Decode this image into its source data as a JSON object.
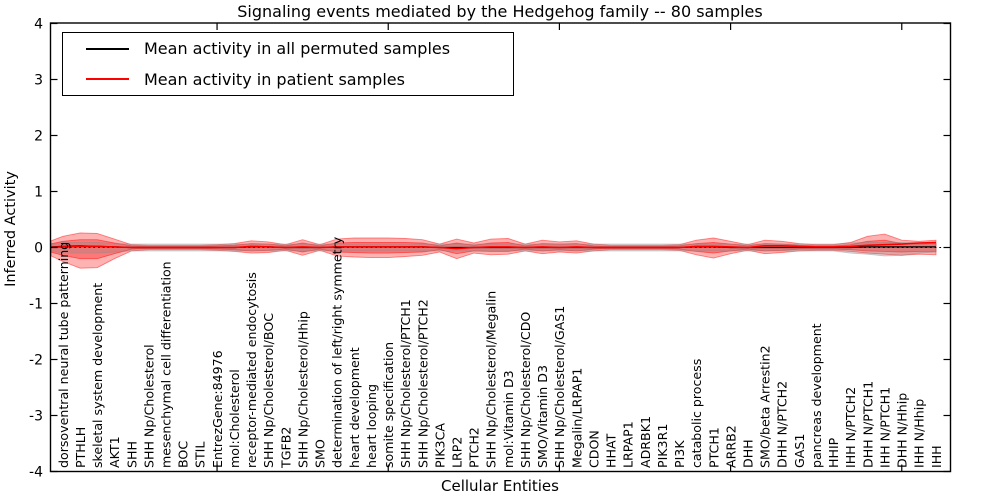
{
  "title": "Signaling events mediated by the Hedgehog family -- 80 samples",
  "axes": {
    "x_label": "Cellular Entities",
    "y_label": "Inferred Activity",
    "y_ticks": [
      4,
      3,
      2,
      1,
      0,
      -1,
      -2,
      -3,
      -4
    ],
    "y_lim": [
      -4,
      4
    ]
  },
  "legend": {
    "position": "upper left",
    "entries": [
      {
        "label": "Mean activity in all permuted samples",
        "color": "#000000"
      },
      {
        "label": "Mean activity in patient samples",
        "color": "#ff0000"
      }
    ]
  },
  "chart_data": {
    "type": "area",
    "title": "Signaling events mediated by the Hedgehog family -- 80 samples",
    "xlabel": "Cellular Entities",
    "ylabel": "Inferred Activity",
    "ylim": [
      -4,
      4
    ],
    "yticks": [
      4,
      3,
      2,
      1,
      0,
      -1,
      -2,
      -3,
      -4
    ],
    "x_major_tick_every": 10,
    "grid": false,
    "legend_position": "upper left",
    "zero_line": {
      "y": 0,
      "style": "dotted",
      "color": "#000000"
    },
    "categories": [
      "dorsoventral neural tube patterning",
      "PTHLH",
      "skeletal system development",
      "AKT1",
      "SHH",
      "SHH Np/Cholesterol",
      "mesenchymal cell differentiation",
      "BOC",
      "STIL",
      "EntrezGene:84976",
      "mol:Cholesterol",
      "receptor-mediated endocytosis",
      "SHH Np/Cholesterol/BOC",
      "TGFB2",
      "SHH Np/Cholesterol/Hhip",
      "SMO",
      "determination of left/right symmetry",
      "heart development",
      "heart looping",
      "somite specification",
      "SHH Np/Cholesterol/PTCH1",
      "SHH Np/Cholesterol/PTCH2",
      "PIK3CA",
      "LRP2",
      "PTCH2",
      "SHH Np/Cholesterol/Megalin",
      "mol:Vitamin D3",
      "SHH Np/Cholesterol/CDO",
      "SMO/Vitamin D3",
      "SHH Np/Cholesterol/GAS1",
      "Megalin/LRPAP1",
      "CDON",
      "HHAT",
      "LRPAP1",
      "ADRBK1",
      "PIK3R1",
      "PI3K",
      "catabolic process",
      "PTCH1",
      "ARRB2",
      "DHH",
      "SMO/beta Arrestin2",
      "DHH N/PTCH2",
      "GAS1",
      "pancreas development",
      "HHIP",
      "IHH N/PTCH2",
      "DHH N/PTCH1",
      "IHH N/PTCH1",
      "DHH N/Hhip",
      "IHH N/Hhip",
      "IHH"
    ],
    "series": [
      {
        "name": "patient envelope (outer)",
        "kind": "band",
        "color": "#ff0000",
        "opacity": 0.3,
        "upper": [
          0.2,
          0.26,
          0.25,
          0.15,
          0.05,
          0.04,
          0.04,
          0.04,
          0.04,
          0.05,
          0.07,
          0.12,
          0.1,
          0.05,
          0.14,
          0.05,
          0.15,
          0.17,
          0.17,
          0.17,
          0.16,
          0.14,
          0.06,
          0.15,
          0.08,
          0.15,
          0.16,
          0.06,
          0.13,
          0.1,
          0.12,
          0.06,
          0.04,
          0.04,
          0.04,
          0.04,
          0.05,
          0.13,
          0.17,
          0.11,
          0.05,
          0.13,
          0.11,
          0.07,
          0.05,
          0.05,
          0.09,
          0.2,
          0.24,
          0.13,
          0.11,
          0.13
        ],
        "lower": [
          0.25,
          0.37,
          0.36,
          0.2,
          0.06,
          0.04,
          0.04,
          0.04,
          0.04,
          0.05,
          0.07,
          0.1,
          0.09,
          0.05,
          0.14,
          0.05,
          0.15,
          0.17,
          0.18,
          0.18,
          0.16,
          0.14,
          0.08,
          0.2,
          0.1,
          0.13,
          0.12,
          0.06,
          0.11,
          0.08,
          0.1,
          0.06,
          0.04,
          0.04,
          0.04,
          0.04,
          0.05,
          0.13,
          0.19,
          0.11,
          0.05,
          0.11,
          0.09,
          0.06,
          0.05,
          0.05,
          0.07,
          0.1,
          0.12,
          0.14,
          0.12,
          0.13
        ]
      },
      {
        "name": "patient envelope (inner)",
        "kind": "band",
        "color": "#ff0000",
        "opacity": 0.32,
        "upper": [
          0.11,
          0.14,
          0.14,
          0.08,
          0.03,
          0.02,
          0.02,
          0.02,
          0.02,
          0.03,
          0.04,
          0.07,
          0.06,
          0.03,
          0.08,
          0.03,
          0.08,
          0.09,
          0.09,
          0.09,
          0.09,
          0.08,
          0.03,
          0.08,
          0.04,
          0.08,
          0.09,
          0.03,
          0.07,
          0.06,
          0.07,
          0.03,
          0.02,
          0.02,
          0.02,
          0.02,
          0.03,
          0.07,
          0.09,
          0.06,
          0.03,
          0.07,
          0.06,
          0.04,
          0.03,
          0.03,
          0.05,
          0.11,
          0.13,
          0.07,
          0.06,
          0.07
        ],
        "lower": [
          0.14,
          0.2,
          0.2,
          0.11,
          0.03,
          0.02,
          0.02,
          0.02,
          0.02,
          0.03,
          0.04,
          0.06,
          0.05,
          0.03,
          0.08,
          0.03,
          0.08,
          0.09,
          0.1,
          0.1,
          0.09,
          0.08,
          0.04,
          0.11,
          0.06,
          0.07,
          0.07,
          0.03,
          0.06,
          0.04,
          0.06,
          0.03,
          0.02,
          0.02,
          0.02,
          0.02,
          0.03,
          0.07,
          0.1,
          0.06,
          0.03,
          0.06,
          0.05,
          0.03,
          0.03,
          0.03,
          0.04,
          0.06,
          0.07,
          0.08,
          0.07,
          0.07
        ]
      },
      {
        "name": "permuted envelope",
        "kind": "band",
        "color": "#888888",
        "opacity": 0.28,
        "upper": [
          0.09,
          0.09,
          0.09,
          0.07,
          0.06,
          0.06,
          0.06,
          0.06,
          0.06,
          0.06,
          0.06,
          0.06,
          0.06,
          0.06,
          0.06,
          0.06,
          0.06,
          0.06,
          0.06,
          0.06,
          0.06,
          0.06,
          0.06,
          0.06,
          0.06,
          0.06,
          0.06,
          0.06,
          0.06,
          0.06,
          0.06,
          0.06,
          0.06,
          0.06,
          0.06,
          0.06,
          0.06,
          0.06,
          0.06,
          0.06,
          0.06,
          0.06,
          0.06,
          0.06,
          0.06,
          0.06,
          0.08,
          0.09,
          0.09,
          0.09,
          0.08,
          0.07
        ],
        "lower": [
          0.1,
          0.1,
          0.1,
          0.08,
          0.06,
          0.06,
          0.06,
          0.06,
          0.06,
          0.06,
          0.06,
          0.06,
          0.06,
          0.06,
          0.06,
          0.06,
          0.06,
          0.06,
          0.06,
          0.06,
          0.06,
          0.06,
          0.06,
          0.06,
          0.06,
          0.06,
          0.06,
          0.06,
          0.06,
          0.06,
          0.06,
          0.06,
          0.06,
          0.06,
          0.06,
          0.06,
          0.06,
          0.06,
          0.06,
          0.06,
          0.06,
          0.06,
          0.06,
          0.06,
          0.06,
          0.06,
          0.1,
          0.12,
          0.15,
          0.14,
          0.1,
          0.08
        ]
      },
      {
        "name": "Mean activity in all permuted samples",
        "kind": "line",
        "color": "#000000",
        "values": [
          0.02,
          0.03,
          0.02,
          0.01,
          0,
          0,
          0,
          0,
          0,
          0,
          0,
          0.01,
          0.01,
          0,
          0,
          0,
          0.01,
          0.01,
          0.01,
          0.01,
          0.01,
          0.01,
          0,
          0,
          0,
          0,
          0,
          0,
          0,
          0,
          0,
          0,
          0,
          0,
          0,
          0,
          0,
          0.01,
          0.01,
          0,
          0,
          0,
          0,
          0,
          0,
          0,
          0,
          0.01,
          0.01,
          0.01,
          0.01,
          0.01
        ]
      },
      {
        "name": "Mean activity in patient samples",
        "kind": "line",
        "color": "#ff0000",
        "values": [
          0.01,
          0.02,
          0.02,
          0.01,
          0,
          0,
          0,
          0,
          0,
          0,
          0,
          0.02,
          0.01,
          0,
          0.01,
          0,
          0.01,
          0.01,
          0.01,
          0.01,
          0.01,
          0.01,
          0,
          -0.02,
          0,
          0.01,
          0.01,
          0,
          0.01,
          0,
          0.01,
          0,
          0,
          0,
          0,
          0,
          0,
          0.02,
          0.02,
          0.01,
          0,
          0.03,
          0.03,
          0.02,
          0.01,
          0.01,
          0.02,
          0.04,
          0.05,
          0.06,
          0.08,
          0.09
        ]
      }
    ]
  }
}
